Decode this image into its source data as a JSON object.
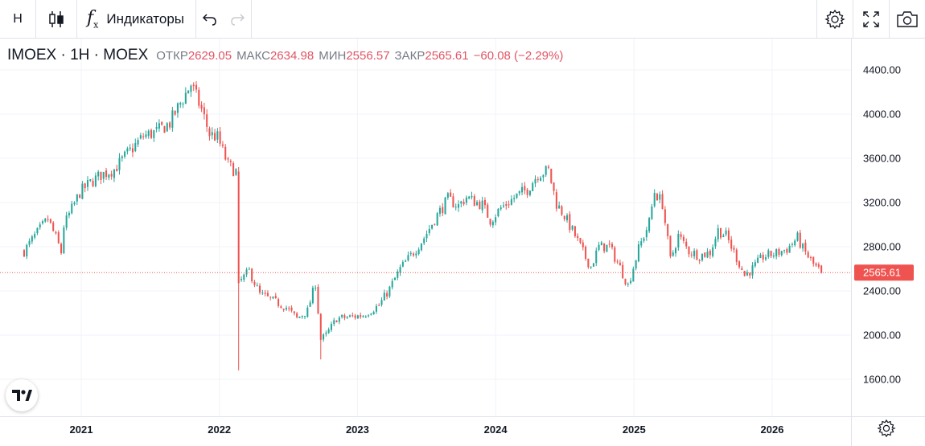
{
  "toolbar": {
    "interval": "Н",
    "indicators_label": "Индикаторы"
  },
  "legend": {
    "symbol": "IMOEX · 1Н · MOEX",
    "open_label": "ОТКР",
    "open": "2629.05",
    "high_label": "МАКС",
    "high": "2634.98",
    "low_label": "МИН",
    "low": "2556.57",
    "close_label": "ЗАКР",
    "close": "2565.61",
    "change": "−60.08 (−2.29%)"
  },
  "colors": {
    "up": "#26a69a",
    "down": "#ef5350",
    "accent": "#ef5350"
  },
  "icons": [
    "candles-icon",
    "fx-icon",
    "undo-icon",
    "redo-icon",
    "settings-icon",
    "fullscreen-icon",
    "camera-icon",
    "tradingview-logo-icon",
    "gear-icon"
  ],
  "chart_data": {
    "type": "candlestick",
    "symbol": "IMOEX",
    "interval": "1Н",
    "ylim": [
      1300,
      4700
    ],
    "yticks": [
      "4400.00",
      "4000.00",
      "3600.00",
      "3200.00",
      "2800.00",
      "2400.00",
      "2000.00",
      "1600.00"
    ],
    "xticks": [
      "2021",
      "2022",
      "2023",
      "2024",
      "2025",
      "2026"
    ],
    "last_price": "2565.61",
    "close_path": [
      [
        "2020-08-03",
        2760
      ],
      [
        "2020-09-01",
        2900
      ],
      [
        "2020-10-05",
        3050
      ],
      [
        "2020-10-26",
        2880
      ],
      [
        "2020-11-09",
        2750
      ],
      [
        "2020-11-16",
        2990
      ],
      [
        "2020-12-28",
        3290
      ],
      [
        "2021-01-25",
        3380
      ],
      [
        "2021-02-22",
        3450
      ],
      [
        "2021-03-29",
        3500
      ],
      [
        "2021-05-03",
        3640
      ],
      [
        "2021-06-14",
        3800
      ],
      [
        "2021-07-19",
        3840
      ],
      [
        "2021-08-23",
        3920
      ],
      [
        "2021-09-20",
        4100
      ],
      [
        "2021-10-18",
        4270
      ],
      [
        "2021-11-15",
        4040
      ],
      [
        "2021-12-06",
        3820
      ],
      [
        "2021-12-27",
        3790
      ],
      [
        "2022-01-24",
        3540
      ],
      [
        "2022-02-14",
        3480
      ],
      [
        "2022-02-21",
        2470
      ],
      [
        "2022-03-21",
        2580
      ],
      [
        "2022-04-18",
        2370
      ],
      [
        "2022-05-30",
        2300
      ],
      [
        "2022-06-27",
        2250
      ],
      [
        "2022-07-25",
        2150
      ],
      [
        "2022-08-22",
        2220
      ],
      [
        "2022-09-12",
        2470
      ],
      [
        "2022-09-26",
        1960
      ],
      [
        "2022-10-10",
        2000
      ],
      [
        "2022-11-07",
        2150
      ],
      [
        "2022-12-05",
        2160
      ],
      [
        "2023-01-16",
        2180
      ],
      [
        "2023-02-27",
        2270
      ],
      [
        "2023-03-27",
        2420
      ],
      [
        "2023-04-24",
        2600
      ],
      [
        "2023-05-29",
        2750
      ],
      [
        "2023-06-26",
        2880
      ],
      [
        "2023-07-24",
        3050
      ],
      [
        "2023-08-28",
        3230
      ],
      [
        "2023-09-25",
        3170
      ],
      [
        "2023-10-16",
        3250
      ],
      [
        "2023-10-30",
        3220
      ],
      [
        "2023-11-27",
        3180
      ],
      [
        "2023-12-18",
        3040
      ],
      [
        "2024-01-15",
        3150
      ],
      [
        "2024-02-26",
        3260
      ],
      [
        "2024-03-25",
        3320
      ],
      [
        "2024-04-22",
        3460
      ],
      [
        "2024-05-20",
        3490
      ],
      [
        "2024-06-10",
        3190
      ],
      [
        "2024-07-01",
        3080
      ],
      [
        "2024-07-29",
        2900
      ],
      [
        "2024-08-26",
        2700
      ],
      [
        "2024-09-09",
        2620
      ],
      [
        "2024-09-30",
        2800
      ],
      [
        "2024-10-28",
        2800
      ],
      [
        "2024-11-25",
        2610
      ],
      [
        "2024-12-16",
        2450
      ],
      [
        "2025-01-13",
        2780
      ],
      [
        "2025-02-10",
        3020
      ],
      [
        "2025-02-24",
        3300
      ],
      [
        "2025-03-17",
        3190
      ],
      [
        "2025-04-07",
        2680
      ],
      [
        "2025-04-28",
        2900
      ],
      [
        "2025-05-26",
        2760
      ],
      [
        "2025-06-23",
        2720
      ],
      [
        "2025-07-21",
        2750
      ],
      [
        "2025-08-11",
        2950
      ],
      [
        "2025-09-01",
        2900
      ],
      [
        "2025-09-29",
        2700
      ],
      [
        "2025-10-20",
        2540
      ],
      [
        "2025-11-10",
        2600
      ],
      [
        "2025-12-08",
        2710
      ],
      [
        "2026-01-12",
        2740
      ],
      [
        "2026-02-09",
        2780
      ],
      [
        "2026-03-09",
        2880
      ],
      [
        "2026-03-23",
        2780
      ],
      [
        "2026-04-20",
        2640
      ],
      [
        "2026-05-11",
        2565.61
      ]
    ]
  }
}
